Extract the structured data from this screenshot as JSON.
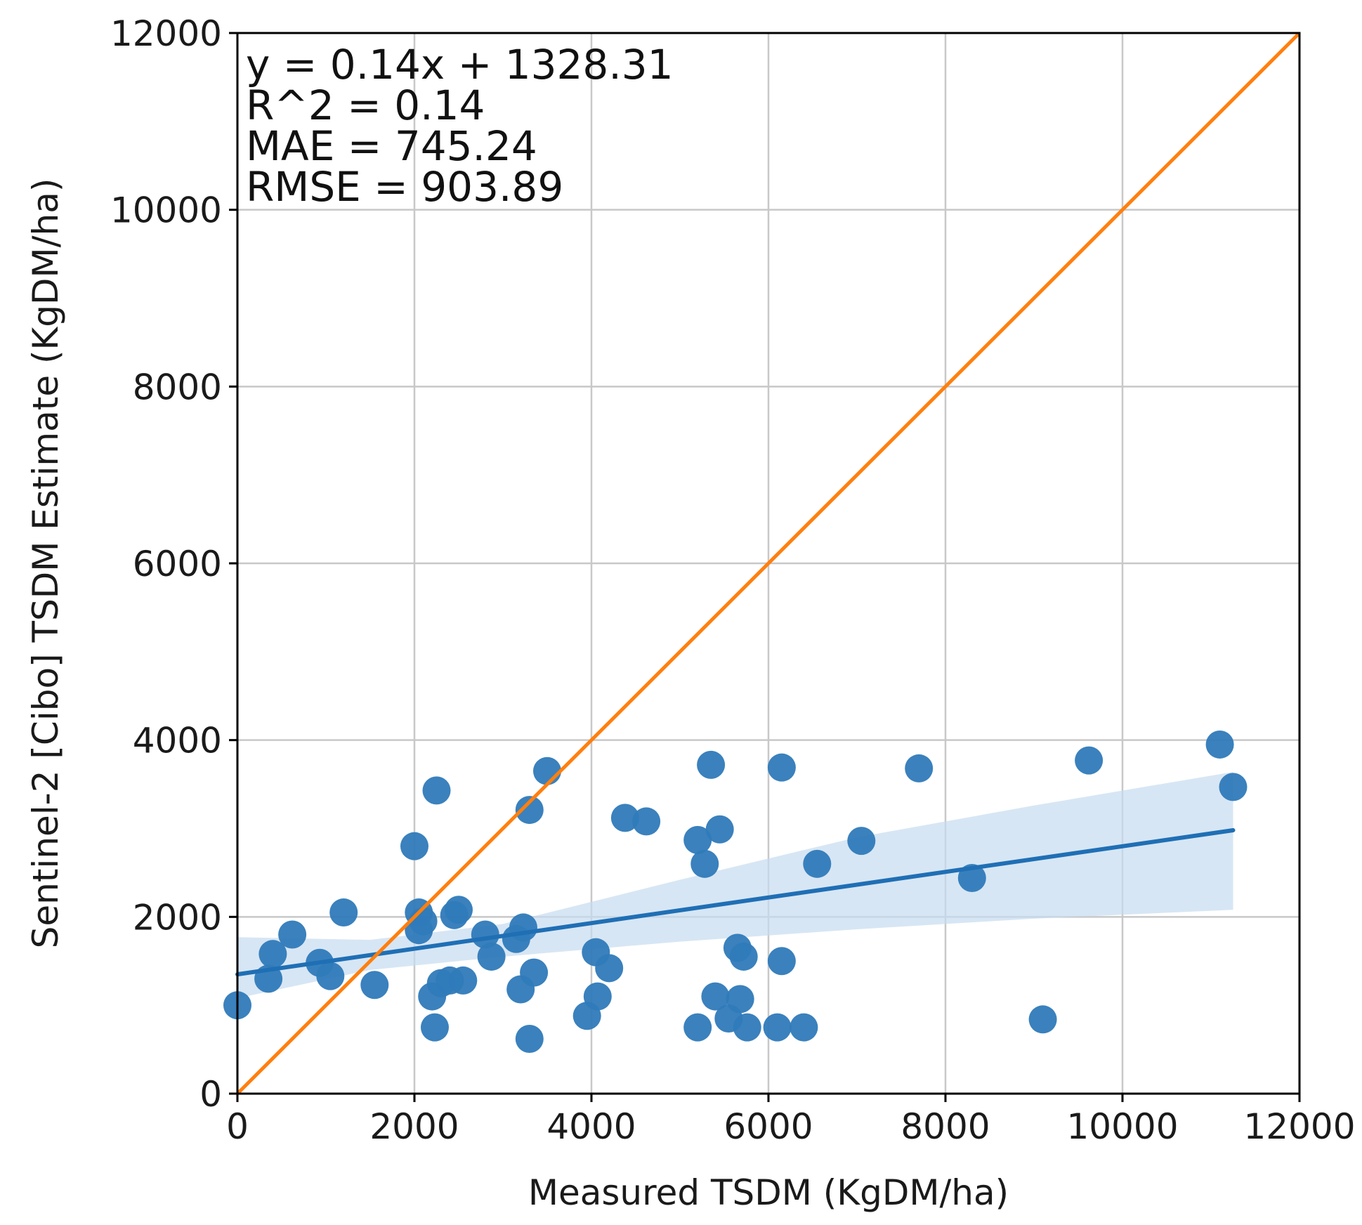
{
  "chart_data": {
    "type": "scatter",
    "title": "",
    "xlabel": "Measured TSDM (KgDM/ha)",
    "ylabel": "Sentinel-2 [Cibo] TSDM Estimate (KgDM/ha)",
    "xlim": [
      0,
      12000
    ],
    "ylim": [
      0,
      12000
    ],
    "xticks": [
      0,
      2000,
      4000,
      6000,
      8000,
      10000,
      12000
    ],
    "yticks": [
      0,
      2000,
      4000,
      6000,
      8000,
      10000,
      12000
    ],
    "xtick_labels": [
      "0",
      "2000",
      "4000",
      "6000",
      "8000",
      "10000",
      "12000"
    ],
    "ytick_labels": [
      "0",
      "2000",
      "4000",
      "6000",
      "8000",
      "10000",
      "12000"
    ],
    "grid": true,
    "annotations": [
      "y = 0.14x + 1328.31",
      "R^2 = 0.14",
      "MAE = 745.24",
      "RMSE = 903.89"
    ],
    "colors": {
      "points": "#2f7ab9",
      "regression": "#1f6fb5",
      "confidence_band": "#c6dbef",
      "identity_line": "#ff7f0e",
      "grid": "#c8c8c8",
      "axes": "#000000"
    },
    "series": [
      {
        "name": "Observations",
        "type": "scatter",
        "points": [
          [
            0,
            1000
          ],
          [
            350,
            1300
          ],
          [
            400,
            1580
          ],
          [
            620,
            1800
          ],
          [
            930,
            1480
          ],
          [
            1050,
            1330
          ],
          [
            1200,
            2050
          ],
          [
            1550,
            1230
          ],
          [
            2000,
            2800
          ],
          [
            2050,
            2050
          ],
          [
            2050,
            1850
          ],
          [
            2100,
            1950
          ],
          [
            2200,
            1100
          ],
          [
            2230,
            750
          ],
          [
            2250,
            3430
          ],
          [
            2300,
            1250
          ],
          [
            2400,
            1280
          ],
          [
            2450,
            2020
          ],
          [
            2500,
            2080
          ],
          [
            2550,
            1280
          ],
          [
            2800,
            1800
          ],
          [
            2870,
            1550
          ],
          [
            3150,
            1750
          ],
          [
            3200,
            1180
          ],
          [
            3230,
            1880
          ],
          [
            3300,
            620
          ],
          [
            3300,
            3210
          ],
          [
            3350,
            1370
          ],
          [
            3500,
            3650
          ],
          [
            3950,
            880
          ],
          [
            4050,
            1600
          ],
          [
            4070,
            1100
          ],
          [
            4200,
            1420
          ],
          [
            4380,
            3120
          ],
          [
            4620,
            3080
          ],
          [
            5200,
            750
          ],
          [
            5200,
            2870
          ],
          [
            5280,
            2600
          ],
          [
            5350,
            3720
          ],
          [
            5400,
            1100
          ],
          [
            5450,
            2990
          ],
          [
            5550,
            850
          ],
          [
            5650,
            1650
          ],
          [
            5680,
            1070
          ],
          [
            5720,
            1550
          ],
          [
            5760,
            750
          ],
          [
            6100,
            750
          ],
          [
            6150,
            3690
          ],
          [
            6150,
            1500
          ],
          [
            6400,
            750
          ],
          [
            6550,
            2600
          ],
          [
            7050,
            2860
          ],
          [
            7700,
            3680
          ],
          [
            8300,
            2440
          ],
          [
            9100,
            840
          ],
          [
            9620,
            3770
          ],
          [
            11100,
            3950
          ],
          [
            11250,
            3470
          ]
        ]
      },
      {
        "name": "Linear fit",
        "type": "line",
        "x": [
          0,
          11250
        ],
        "y": [
          1350,
          2980
        ]
      },
      {
        "name": "95% confidence band",
        "type": "area",
        "x": [
          0,
          1500,
          3000,
          5000,
          7000,
          9000,
          11250
        ],
        "lower": [
          1080,
          1400,
          1550,
          1720,
          1860,
          1980,
          2080
        ],
        "upper": [
          1770,
          1740,
          1920,
          2420,
          2900,
          3260,
          3640
        ]
      },
      {
        "name": "1:1 line",
        "type": "line",
        "x": [
          0,
          12000
        ],
        "y": [
          0,
          12000
        ]
      }
    ]
  }
}
